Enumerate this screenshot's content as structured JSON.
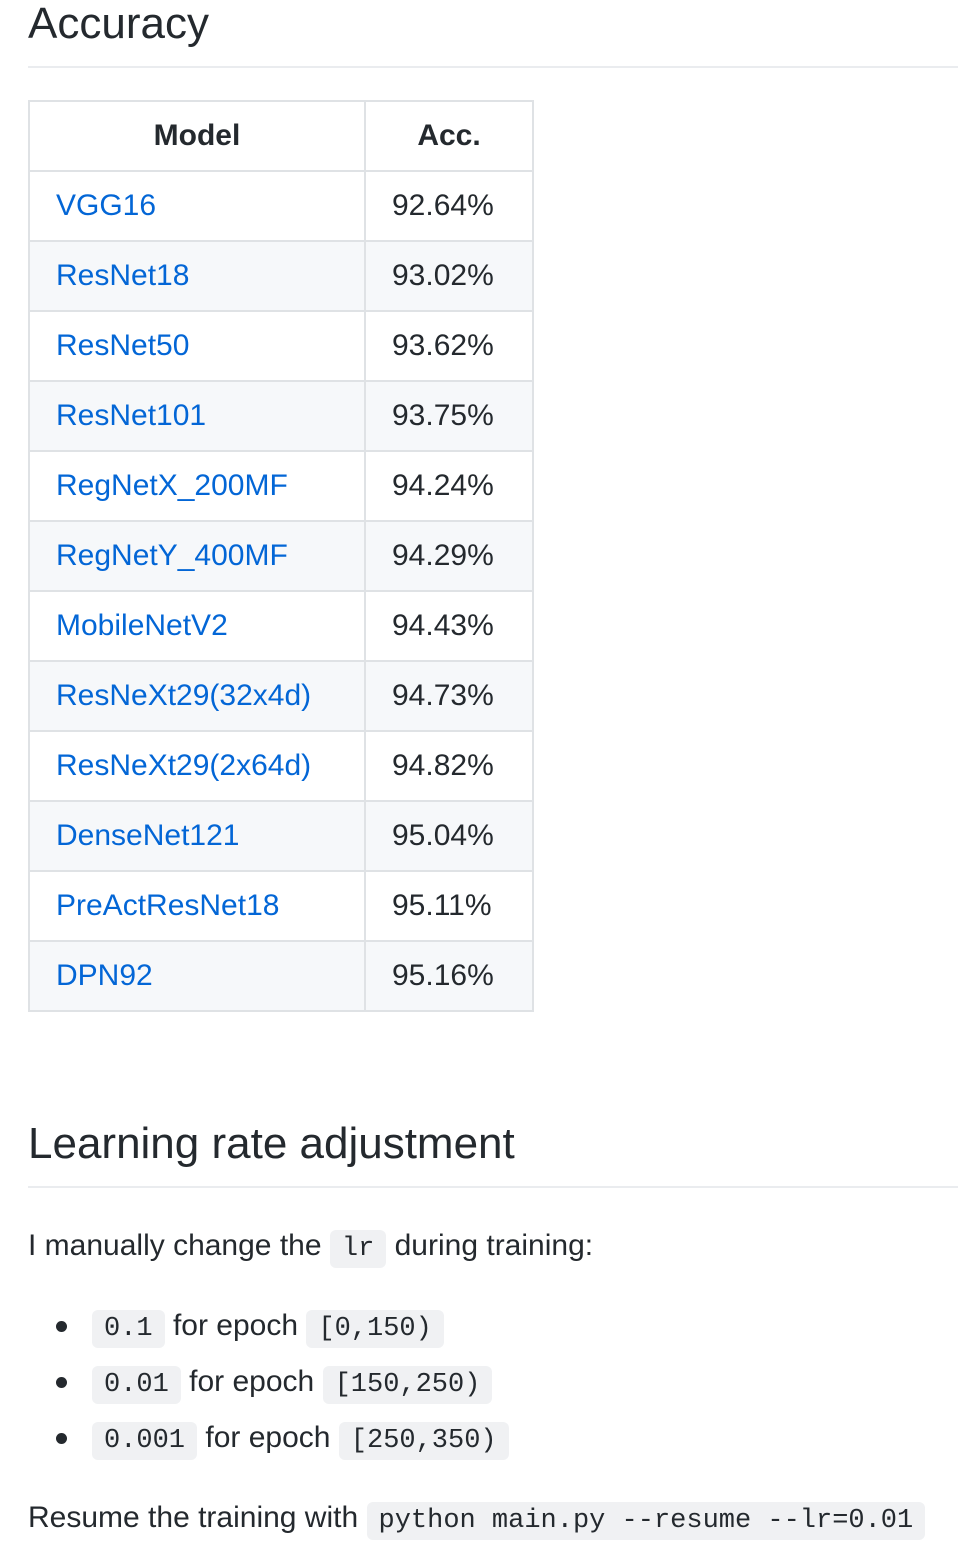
{
  "accuracy_section": {
    "heading": "Accuracy",
    "table": {
      "headers": [
        "Model",
        "Acc."
      ],
      "rows": [
        {
          "model": "VGG16",
          "acc": "92.64%"
        },
        {
          "model": "ResNet18",
          "acc": "93.02%"
        },
        {
          "model": "ResNet50",
          "acc": "93.62%"
        },
        {
          "model": "ResNet101",
          "acc": "93.75%"
        },
        {
          "model": "RegNetX_200MF",
          "acc": "94.24%"
        },
        {
          "model": "RegNetY_400MF",
          "acc": "94.29%"
        },
        {
          "model": "MobileNetV2",
          "acc": "94.43%"
        },
        {
          "model": "ResNeXt29(32x4d)",
          "acc": "94.73%"
        },
        {
          "model": "ResNeXt29(2x64d)",
          "acc": "94.82%"
        },
        {
          "model": "DenseNet121",
          "acc": "95.04%"
        },
        {
          "model": "PreActResNet18",
          "acc": "95.11%"
        },
        {
          "model": "DPN92",
          "acc": "95.16%"
        }
      ]
    }
  },
  "lr_section": {
    "heading": "Learning rate adjustment",
    "intro": {
      "before": "I manually change the",
      "code": "lr",
      "after": "during training:"
    },
    "schedule": [
      {
        "lr": "0.1",
        "text": "for epoch",
        "range": "[0,150)"
      },
      {
        "lr": "0.01",
        "text": "for epoch",
        "range": "[150,250)"
      },
      {
        "lr": "0.001",
        "text": "for epoch",
        "range": "[250,350)"
      }
    ],
    "resume": {
      "text": "Resume the training with",
      "code": "python main.py --resume --lr=0.01"
    }
  },
  "colors": {
    "link": "#0366d6",
    "text": "#24292e",
    "border": "#dfe2e5",
    "stripe": "#f6f8fa",
    "code_bg": "#f0f1f3"
  }
}
